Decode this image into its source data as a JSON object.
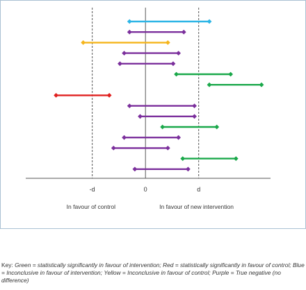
{
  "chart_data": {
    "type": "forest",
    "title": "",
    "xlabel": "",
    "ylabel": "",
    "ticks": [
      {
        "value": -1,
        "label": "-d"
      },
      {
        "value": 0,
        "label": "0"
      },
      {
        "value": 1,
        "label": "d"
      }
    ],
    "xlim": [
      -2.25,
      2.35
    ],
    "reference_lines": [
      {
        "value": -1,
        "style": "dashed"
      },
      {
        "value": 0,
        "style": "solid"
      },
      {
        "value": 1,
        "style": "dashed"
      }
    ],
    "region_labels": {
      "left": "In favour of control",
      "right": "In favour of new intervention"
    },
    "colors": {
      "green": "#1aa84a",
      "red": "#e0201f",
      "blue": "#2db5e6",
      "yellow": "#f5b51c",
      "purple": "#7b2f9c",
      "axis": "#555555",
      "ref": "#555555"
    },
    "intervals": [
      {
        "low": -0.3,
        "high": 1.2,
        "category": "blue"
      },
      {
        "low": -0.3,
        "high": 0.72,
        "category": "purple"
      },
      {
        "low": -1.17,
        "high": 0.42,
        "category": "yellow"
      },
      {
        "low": -0.4,
        "high": 0.62,
        "category": "purple"
      },
      {
        "low": -0.48,
        "high": 0.52,
        "category": "purple"
      },
      {
        "low": 0.58,
        "high": 1.6,
        "category": "green"
      },
      {
        "low": 1.2,
        "high": 2.18,
        "category": "green"
      },
      {
        "low": -1.68,
        "high": -0.68,
        "category": "red"
      },
      {
        "low": -0.3,
        "high": 0.92,
        "category": "purple"
      },
      {
        "low": -0.1,
        "high": 0.92,
        "category": "purple"
      },
      {
        "low": 0.32,
        "high": 1.34,
        "category": "green"
      },
      {
        "low": -0.4,
        "high": 0.62,
        "category": "purple"
      },
      {
        "low": -0.6,
        "high": 0.42,
        "category": "purple"
      },
      {
        "low": 0.7,
        "high": 1.7,
        "category": "green"
      },
      {
        "low": -0.2,
        "high": 0.8,
        "category": "purple"
      }
    ]
  },
  "key": {
    "prefix": "Key: ",
    "entries": [
      "Green = statistically significantly in favour of intervention;",
      "Red = statistically significantly in favour of control;",
      "Blue = Inconclusive in favour of intervention;",
      "Yellow = Inconclusive in favour of control;",
      "Purple = True negative (no difference)"
    ]
  }
}
